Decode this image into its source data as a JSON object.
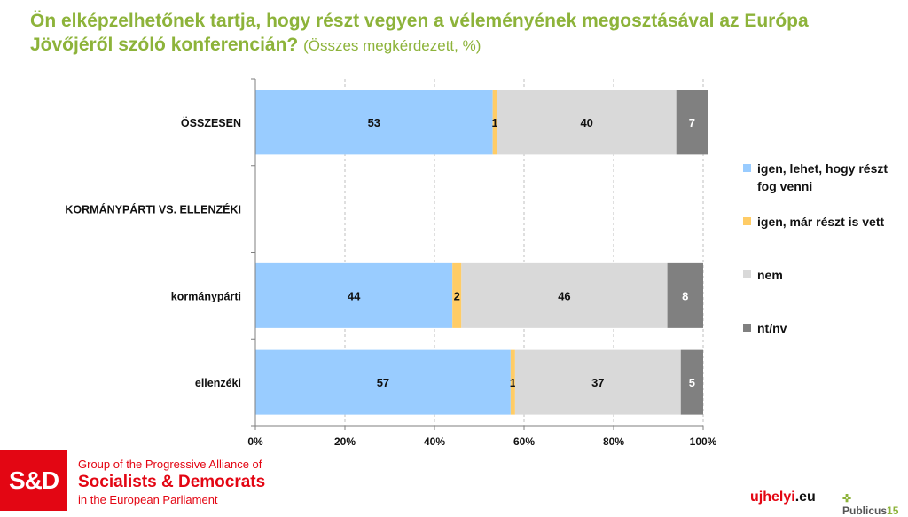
{
  "header": {
    "title": "Ön elképzelhetőnek tartja, hogy részt vegyen a véleményének megosztásával az Európa Jövőjéről szóló konferencián?",
    "subtitle": "(Összes megkérdezett, %)"
  },
  "chart_data": {
    "type": "bar",
    "orientation": "horizontal",
    "stacked": true,
    "title": "Ön elképzelhetőnek tartja, hogy részt vegyen a véleményének megosztásával az Európa Jövőjéről szóló konferencián?",
    "categories": [
      "ÖSSZESEN",
      "KORMÁNYPÁRTI VS. ELLENZÉKI",
      "kormánypárti",
      "ellenzéki"
    ],
    "category_bold": [
      true,
      true,
      true,
      true
    ],
    "series": [
      {
        "name": "igen, lehet, hogy részt fog venni",
        "color": "#99ccff",
        "label_color": "#111111",
        "values": [
          53,
          null,
          44,
          57
        ]
      },
      {
        "name": "igen, már részt is vett",
        "color": "#ffcc66",
        "label_color": "#111111",
        "values": [
          1,
          null,
          2,
          1
        ]
      },
      {
        "name": "nem",
        "color": "#d9d9d9",
        "label_color": "#111111",
        "values": [
          40,
          null,
          46,
          37
        ]
      },
      {
        "name": "nt/nv",
        "color": "#808080",
        "label_color": "#ffffff",
        "values": [
          7,
          null,
          8,
          5
        ]
      }
    ],
    "xlim": [
      0,
      100
    ],
    "xticks": [
      "0%",
      "20%",
      "40%",
      "60%",
      "80%",
      "100%"
    ],
    "xtick_values": [
      0,
      20,
      40,
      60,
      80,
      100
    ],
    "grid": true,
    "legend_position": "right"
  },
  "legend": [
    {
      "label": "igen, lehet, hogy részt fog venni",
      "color": "#99ccff"
    },
    {
      "label": "igen, már részt is vett",
      "color": "#ffcc66"
    },
    {
      "label": "nem",
      "color": "#d9d9d9"
    },
    {
      "label": "nt/nv",
      "color": "#808080"
    }
  ],
  "footer": {
    "logo_text": "S&D",
    "org_line1": "Group of the Progressive Alliance of",
    "org_line2": "Socialists & Democrats",
    "org_line3": "in the European Parliament",
    "brand_ujhelyi": "ujhelyi",
    "brand_ujhelyi_dot": ".eu",
    "brand_publicus": "Publicus",
    "brand_publicus_mark": "15"
  }
}
